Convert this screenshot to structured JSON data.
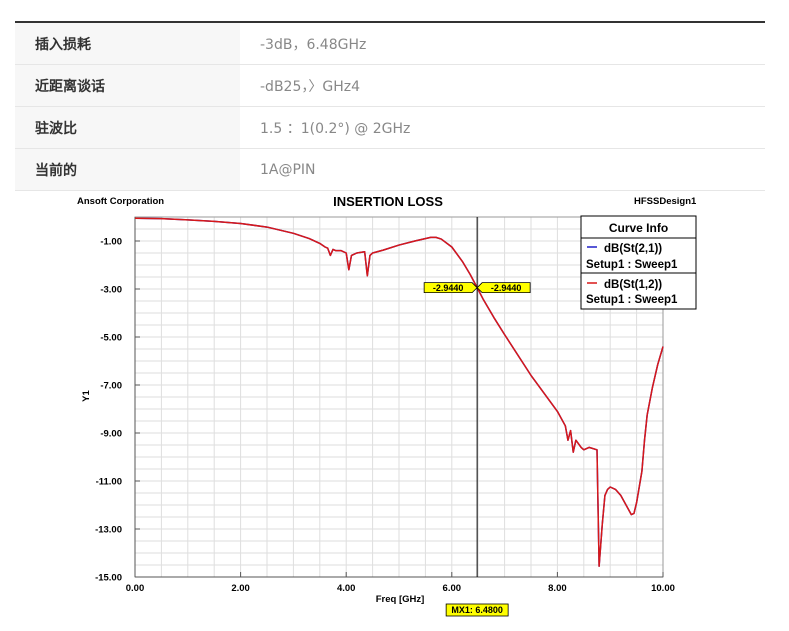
{
  "spec_table": {
    "rows": [
      {
        "label": "插入损耗",
        "value": "-3dB，6.48GHz"
      },
      {
        "label": "近距离谈话",
        "value": "-dB25，〉GHz4"
      },
      {
        "label": "驻波比",
        "value": "1.5 ：1(0.2°) @ 2GHz"
      },
      {
        "label": "当前的",
        "value": "1A@PIN"
      }
    ]
  },
  "chart_header": {
    "company": "Ansoft Corporation",
    "design": "HFSSDesign1"
  },
  "chart_data": {
    "type": "line",
    "title": "INSERTION LOSS",
    "xlabel": "Freq [GHz]",
    "ylabel": "Y1",
    "xlim": [
      0,
      10
    ],
    "ylim": [
      -15,
      0
    ],
    "x_ticks": [
      0,
      2,
      4,
      6,
      8,
      10
    ],
    "x_tick_labels": [
      "0.00",
      "2.00",
      "4.00",
      "6.00",
      "8.00",
      "10.00"
    ],
    "y_ticks": [
      -1,
      -3,
      -5,
      -7,
      -9,
      -11,
      -13,
      -15
    ],
    "y_tick_labels": [
      "-1.00",
      "-3.00",
      "-5.00",
      "-7.00",
      "-9.00",
      "-11.00",
      "-13.00",
      "-15.00"
    ],
    "grid": true,
    "legend": {
      "title": "Curve Info",
      "placement": "top-right"
    },
    "x": [
      0,
      0.5,
      1.0,
      1.5,
      2.0,
      2.5,
      3.0,
      3.3,
      3.5,
      3.6,
      3.65,
      3.7,
      3.75,
      3.8,
      3.9,
      4.0,
      4.05,
      4.1,
      4.2,
      4.35,
      4.4,
      4.45,
      4.5,
      4.7,
      5.0,
      5.3,
      5.6,
      5.7,
      5.8,
      6.0,
      6.2,
      6.35,
      6.48,
      6.6,
      6.8,
      7.0,
      7.5,
      8.0,
      8.15,
      8.2,
      8.25,
      8.3,
      8.35,
      8.45,
      8.5,
      8.6,
      8.75,
      8.79,
      8.85,
      8.9,
      8.95,
      9.0,
      9.1,
      9.2,
      9.3,
      9.4,
      9.45,
      9.5,
      9.6,
      9.65,
      9.7,
      9.8,
      9.9,
      10.0
    ],
    "series": [
      {
        "name": "dB(St(2,1))",
        "setup": "Setup1 : Sweep1",
        "color": "#2020c8",
        "values": [
          -0.05,
          -0.07,
          -0.12,
          -0.18,
          -0.27,
          -0.42,
          -0.68,
          -0.9,
          -1.1,
          -1.25,
          -1.3,
          -1.6,
          -1.35,
          -1.4,
          -1.4,
          -1.5,
          -2.2,
          -1.6,
          -1.5,
          -1.45,
          -2.45,
          -1.6,
          -1.5,
          -1.38,
          -1.17,
          -1.0,
          -0.85,
          -0.85,
          -0.92,
          -1.25,
          -1.85,
          -2.4,
          -2.944,
          -3.45,
          -4.2,
          -4.9,
          -6.6,
          -8.1,
          -8.7,
          -9.3,
          -8.9,
          -9.8,
          -9.3,
          -9.6,
          -9.7,
          -9.6,
          -9.7,
          -14.55,
          -12.8,
          -11.6,
          -11.35,
          -11.25,
          -11.35,
          -11.6,
          -12.0,
          -12.4,
          -12.35,
          -11.9,
          -10.6,
          -9.3,
          -8.25,
          -7.1,
          -6.15,
          -5.4
        ]
      },
      {
        "name": "dB(St(1,2))",
        "setup": "Setup1 : Sweep1",
        "color": "#d81818",
        "values": [
          -0.05,
          -0.07,
          -0.12,
          -0.18,
          -0.27,
          -0.42,
          -0.68,
          -0.9,
          -1.1,
          -1.25,
          -1.3,
          -1.6,
          -1.35,
          -1.4,
          -1.4,
          -1.5,
          -2.2,
          -1.6,
          -1.5,
          -1.45,
          -2.45,
          -1.6,
          -1.5,
          -1.38,
          -1.17,
          -1.0,
          -0.85,
          -0.85,
          -0.92,
          -1.25,
          -1.85,
          -2.4,
          -2.944,
          -3.45,
          -4.2,
          -4.9,
          -6.6,
          -8.1,
          -8.7,
          -9.3,
          -8.9,
          -9.8,
          -9.3,
          -9.6,
          -9.7,
          -9.6,
          -9.7,
          -14.55,
          -12.8,
          -11.6,
          -11.35,
          -11.25,
          -11.35,
          -11.6,
          -12.0,
          -12.4,
          -12.35,
          -11.9,
          -10.6,
          -9.3,
          -8.25,
          -7.1,
          -6.15,
          -5.4
        ]
      }
    ],
    "marker": {
      "label": "MX1: 6.4800",
      "x": 6.48,
      "y": -2.944,
      "readouts": [
        "-2.9440",
        "-2.9440"
      ],
      "color": "#ffff00"
    }
  }
}
